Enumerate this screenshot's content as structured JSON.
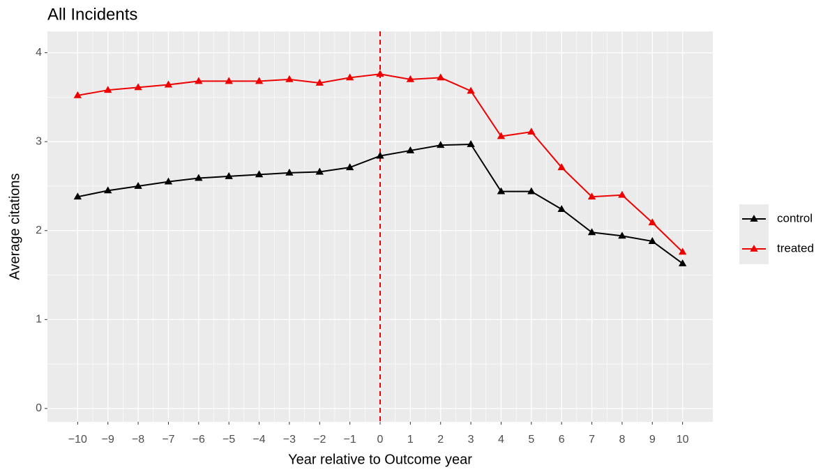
{
  "chart_data": {
    "type": "line",
    "title": "All Incidents",
    "x_label": "Year relative to Outcome year",
    "y_label": "Average citations",
    "x": [
      -10,
      -9,
      -8,
      -7,
      -6,
      -5,
      -4,
      -3,
      -2,
      -1,
      0,
      1,
      2,
      3,
      4,
      5,
      6,
      7,
      8,
      9,
      10
    ],
    "series": [
      {
        "name": "control",
        "color": "#000000",
        "values": [
          2.38,
          2.45,
          2.5,
          2.55,
          2.59,
          2.61,
          2.63,
          2.65,
          2.66,
          2.71,
          2.84,
          2.9,
          2.96,
          2.97,
          2.44,
          2.44,
          2.24,
          1.98,
          1.94,
          1.88,
          1.63
        ]
      },
      {
        "name": "treated",
        "color": "#ee0000",
        "values": [
          3.52,
          3.58,
          3.61,
          3.64,
          3.68,
          3.68,
          3.68,
          3.7,
          3.66,
          3.72,
          3.76,
          3.7,
          3.72,
          3.57,
          3.06,
          3.11,
          2.71,
          2.38,
          2.4,
          2.09,
          1.76
        ]
      }
    ],
    "xlim": [
      -11,
      11
    ],
    "ylim": [
      -0.15,
      4.24
    ],
    "xticks": [
      {
        "value": -10,
        "label": "−10"
      },
      {
        "value": -9,
        "label": "−9"
      },
      {
        "value": -8,
        "label": "−8"
      },
      {
        "value": -7,
        "label": "−7"
      },
      {
        "value": -6,
        "label": "−6"
      },
      {
        "value": -5,
        "label": "−5"
      },
      {
        "value": -4,
        "label": "−4"
      },
      {
        "value": -3,
        "label": "−3"
      },
      {
        "value": -2,
        "label": "−2"
      },
      {
        "value": -1,
        "label": "−1"
      },
      0,
      1,
      2,
      3,
      4,
      5,
      6,
      7,
      8,
      9,
      10
    ],
    "yticks": [
      0,
      1,
      2,
      3,
      4
    ],
    "grid": true,
    "legend": "right",
    "vline": {
      "x": 0,
      "color": "#ee0000"
    }
  }
}
